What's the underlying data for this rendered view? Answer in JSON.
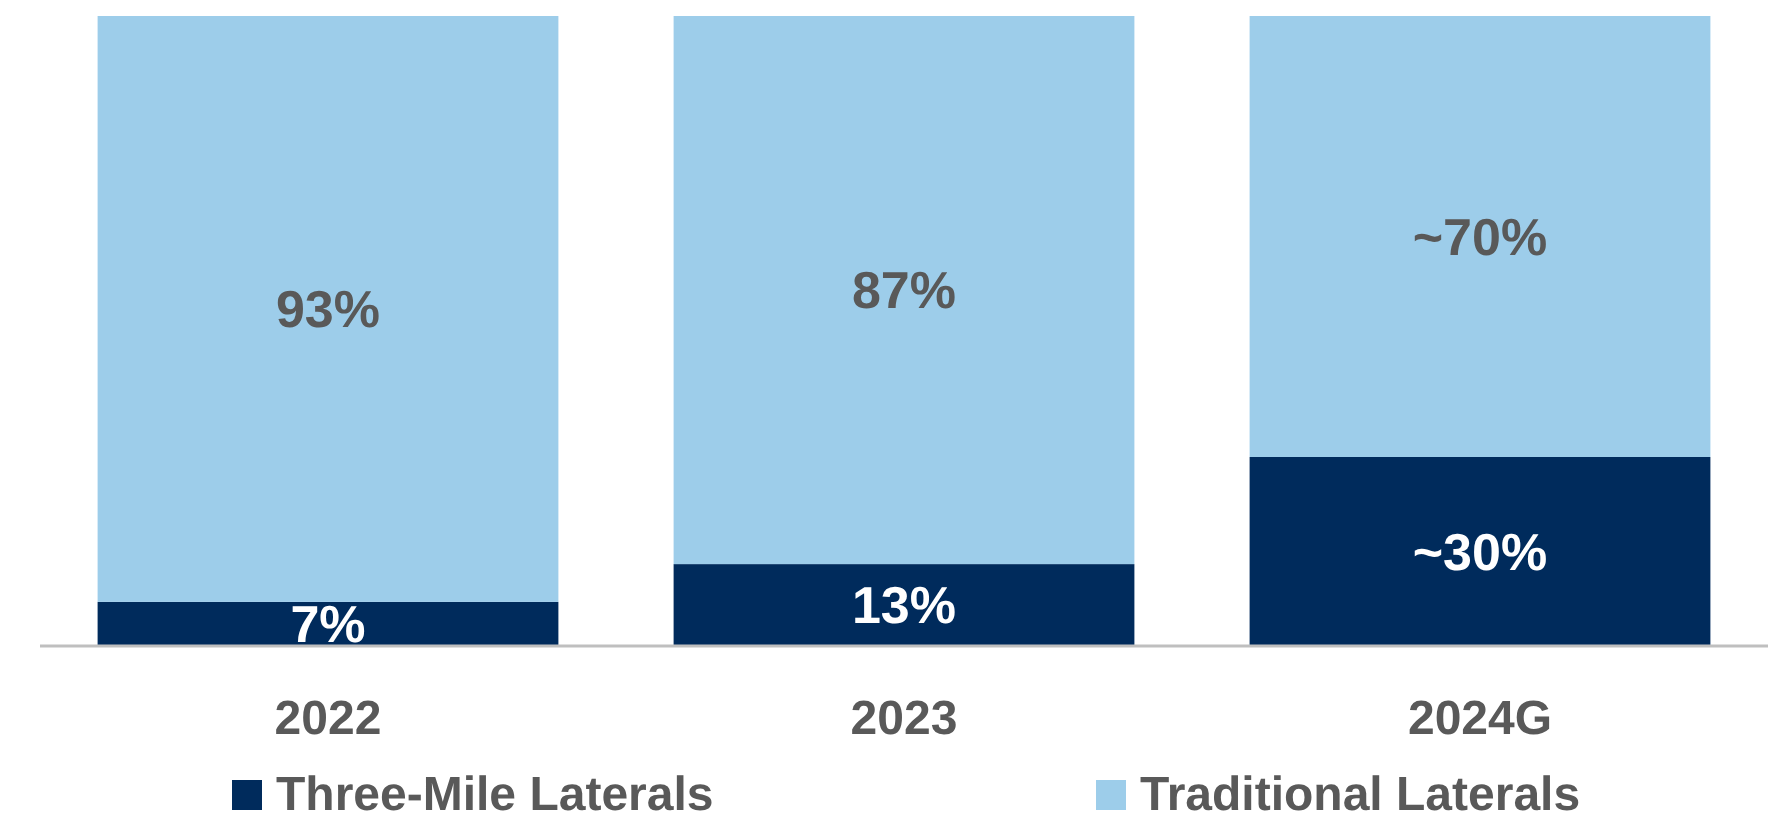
{
  "chart_data": {
    "type": "bar",
    "stacked": true,
    "categories": [
      "2022",
      "2023",
      "2024G"
    ],
    "series": [
      {
        "name": "Three-Mile Laterals",
        "color": "#002b5c",
        "values": [
          7,
          13,
          30
        ],
        "value_labels": [
          "7%",
          "13%",
          "~30%"
        ]
      },
      {
        "name": "Traditional Laterals",
        "color": "#9dcdea",
        "values": [
          93,
          87,
          70
        ],
        "value_labels": [
          "93%",
          "87%",
          "~70%"
        ]
      }
    ],
    "legend": "bottom"
  }
}
